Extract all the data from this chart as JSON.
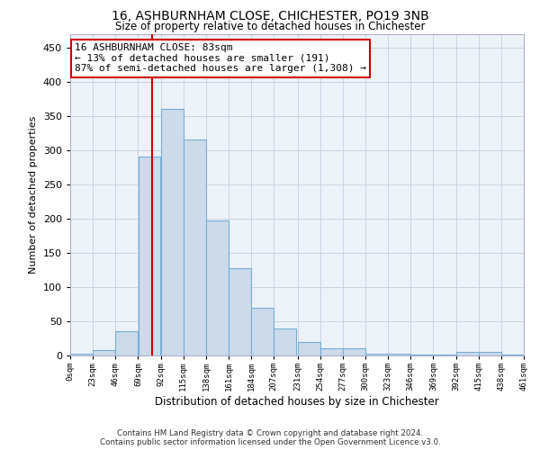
{
  "title": "16, ASHBURNHAM CLOSE, CHICHESTER, PO19 3NB",
  "subtitle": "Size of property relative to detached houses in Chichester",
  "xlabel": "Distribution of detached houses by size in Chichester",
  "ylabel": "Number of detached properties",
  "footer_line1": "Contains HM Land Registry data © Crown copyright and database right 2024.",
  "footer_line2": "Contains public sector information licensed under the Open Government Licence v3.0.",
  "bin_edges": [
    0,
    23,
    46,
    69,
    92,
    115,
    138,
    161,
    184,
    207,
    231,
    254,
    277,
    300,
    323,
    346,
    369,
    392,
    415,
    438,
    461
  ],
  "bar_values": [
    3,
    8,
    35,
    290,
    360,
    315,
    197,
    127,
    70,
    40,
    20,
    11,
    10,
    3,
    2,
    1,
    1,
    5,
    5,
    1
  ],
  "bar_color": "#ccdaea",
  "bar_edge_color": "#7aaed4",
  "property_line_x": 83,
  "property_line_color": "#cc0000",
  "annotation_text": "16 ASHBURNHAM CLOSE: 83sqm\n← 13% of detached houses are smaller (191)\n87% of semi-detached houses are larger (1,308) →",
  "annotation_box_facecolor": "white",
  "annotation_box_edgecolor": "#cc0000",
  "ylim": [
    0,
    470
  ],
  "xlim": [
    0,
    461
  ],
  "grid_color": "#c8d4e4",
  "axes_bg": "#edf2f8",
  "tick_labels": [
    "0sqm",
    "23sqm",
    "46sqm",
    "69sqm",
    "92sqm",
    "115sqm",
    "138sqm",
    "161sqm",
    "184sqm",
    "207sqm",
    "231sqm",
    "254sqm",
    "277sqm",
    "300sqm",
    "323sqm",
    "346sqm",
    "369sqm",
    "392sqm",
    "415sqm",
    "438sqm",
    "461sqm"
  ],
  "yticks": [
    0,
    50,
    100,
    150,
    200,
    250,
    300,
    350,
    400,
    450
  ]
}
